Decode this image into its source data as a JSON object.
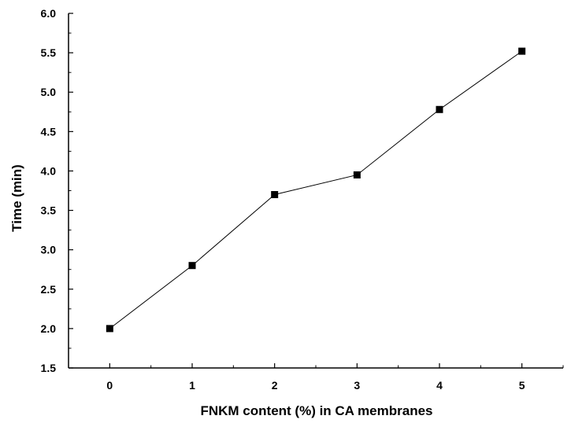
{
  "chart_data": {
    "type": "line",
    "title": "",
    "xlabel": "FNKM content (%) in CA membranes",
    "ylabel": "Time (min)",
    "x": [
      0,
      1,
      2,
      3,
      4,
      5
    ],
    "series": [
      {
        "values": [
          2.0,
          2.8,
          3.7,
          3.95,
          4.78,
          5.52
        ],
        "marker": "square",
        "color": "#000000"
      }
    ],
    "xlim": [
      -0.5,
      5.5
    ],
    "ylim": [
      1.5,
      6.0
    ],
    "xticks": [
      "0",
      "1",
      "2",
      "3",
      "4",
      "5"
    ],
    "yticks": [
      "1.5",
      "2.0",
      "2.5",
      "3.0",
      "3.5",
      "4.0",
      "4.5",
      "5.0",
      "5.5",
      "6.0"
    ],
    "grid": false,
    "legend": "none"
  }
}
